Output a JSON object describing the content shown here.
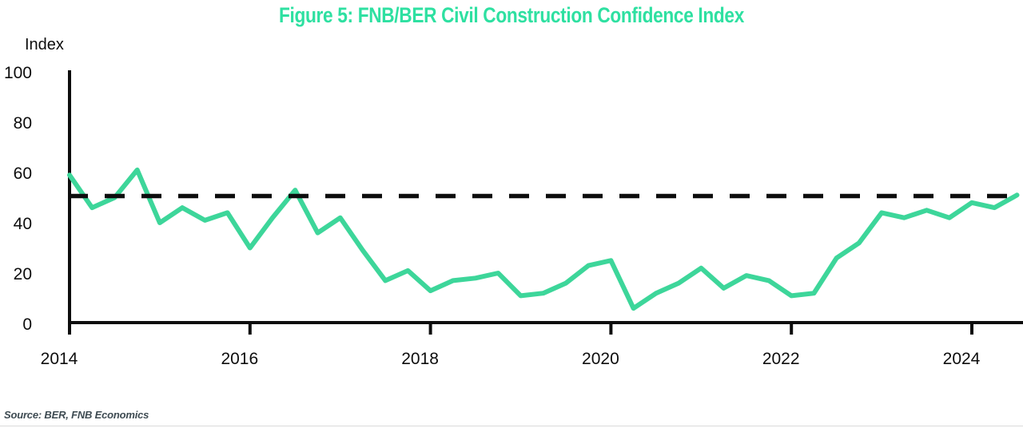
{
  "page": {
    "title": "Figure 5: FNB/BER Civil Construction Confidence Index",
    "source_note": "Source: BER, FNB Economics"
  },
  "colors": {
    "title_green": "#2ee0a1",
    "line_green": "#3dd69a",
    "axis_black": "#0d0d0d",
    "reference_black": "#0d0d0d",
    "source_text": "#3e4b52",
    "divider": "#dadada"
  },
  "chart_data": {
    "type": "line",
    "title": "Figure 5: FNB/BER Civil Construction Confidence Index",
    "ylabel": "Index",
    "xlabel": "",
    "ylim": [
      0,
      100
    ],
    "y_ticks": [
      0,
      20,
      40,
      60,
      80,
      100
    ],
    "x_tick_labels": [
      "2014",
      "2016",
      "2018",
      "2020",
      "2022",
      "2024"
    ],
    "x_start_year": 2014,
    "points_per_year": 4,
    "frequency": "quarterly",
    "grid": false,
    "legend_position": "none",
    "reference_line": {
      "value": 50,
      "style": "dashed"
    },
    "series": [
      {
        "name": "FNB/BER Civil Construction Confidence Index",
        "start": "2014Q1",
        "end": "2024Q3",
        "values": [
          59,
          46,
          50,
          61,
          40,
          46,
          41,
          44,
          30,
          42,
          53,
          36,
          42,
          29,
          17,
          21,
          13,
          17,
          18,
          20,
          11,
          12,
          16,
          23,
          25,
          6,
          12,
          16,
          22,
          14,
          19,
          17,
          11,
          12,
          26,
          32,
          44,
          42,
          45,
          42,
          48,
          46,
          51
        ]
      }
    ]
  }
}
